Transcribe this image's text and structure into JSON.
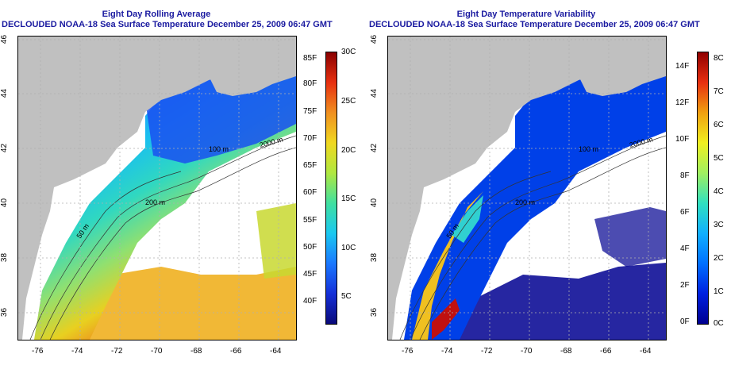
{
  "left_panel": {
    "title": "Eight Day Rolling Average",
    "subtitle": "DECLOUDED NOAA-18 Sea Surface Temperature December 25, 2009 06:47 GMT",
    "contour_labels": [
      "50 m",
      "200 m",
      "100 m",
      "2000 m"
    ],
    "colorbar": {
      "colors": [
        "#0a0a7a",
        "#1530d8",
        "#1a78ff",
        "#1ac8f0",
        "#40e0a0",
        "#b0e840",
        "#f0d820",
        "#f09020",
        "#e83010",
        "#8a0000"
      ],
      "f_labels": [
        "85F",
        "80F",
        "75F",
        "70F",
        "65F",
        "60F",
        "55F",
        "50F",
        "45F",
        "40F"
      ],
      "c_labels": [
        "30C",
        "25C",
        "20C",
        "15C",
        "10C",
        "5C"
      ]
    }
  },
  "right_panel": {
    "title": "Eight Day Temperature Variability",
    "subtitle": "DECLOUDED NOAA-18 Sea Surface Temperature December 25, 2009 06:47 GMT",
    "contour_labels": [
      "50 m",
      "200 m",
      "100 m",
      "2000 m"
    ],
    "colorbar": {
      "colors": [
        "#000090",
        "#0020e0",
        "#0070ff",
        "#10b0ff",
        "#30e0c0",
        "#a0f060",
        "#f0f020",
        "#f0a010",
        "#e83010",
        "#900000"
      ],
      "f_labels": [
        "14F",
        "12F",
        "10F",
        "8F",
        "6F",
        "4F",
        "2F",
        "0F"
      ],
      "c_labels": [
        "8C",
        "7C",
        "6C",
        "5C",
        "4C",
        "3C",
        "2C",
        "1C",
        "0C"
      ]
    }
  },
  "axes": {
    "x_ticks": [
      "-76",
      "-74",
      "-72",
      "-70",
      "-68",
      "-66",
      "-64"
    ],
    "y_ticks": [
      "46",
      "44",
      "42",
      "40",
      "38",
      "36"
    ]
  },
  "colors": {
    "land": "#c0c0c0",
    "title": "#1a1aa0",
    "grid": "#b0b0b0"
  }
}
